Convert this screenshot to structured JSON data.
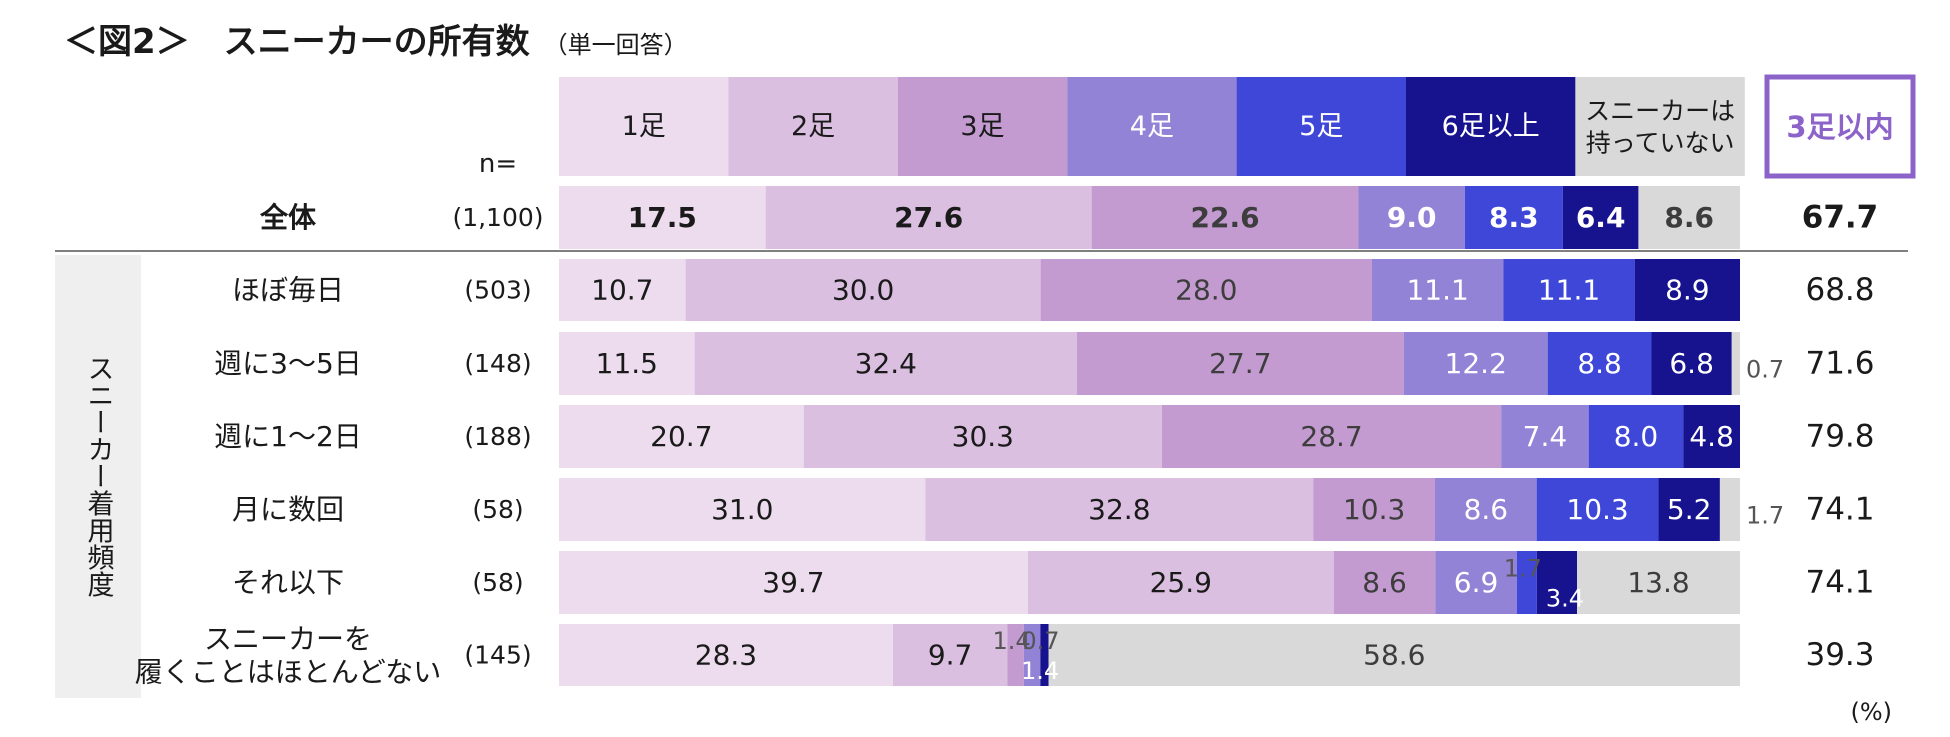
{
  "title": "＜図2＞　スニーカーの所有数",
  "subtitle": "（単一回答）",
  "chart_data": {
    "type": "bar",
    "orientation": "horizontal-stacked-100",
    "n_label": "n=",
    "group_label": "スニーカー着用頻度",
    "summary_header": "3足以内",
    "unit_label": "(%)",
    "legend": [
      {
        "name": "1足",
        "color": "#ecdcee"
      },
      {
        "name": "2足",
        "color": "#dbbfe0"
      },
      {
        "name": "3足",
        "color": "#c39bd1"
      },
      {
        "name": "4足",
        "color": "#9283d6"
      },
      {
        "name": "5足",
        "color": "#3f47d9"
      },
      {
        "name": "6足以上",
        "color": "#17138e"
      },
      {
        "name": "スニーカーは\n持っていない",
        "color": "#d9d9d9"
      }
    ],
    "rows": [
      {
        "label": "全体",
        "n": "(1,100)",
        "values": [
          17.5,
          27.6,
          22.6,
          9.0,
          8.3,
          6.4,
          8.6
        ],
        "summary": "67.7",
        "total": true
      },
      {
        "label": "ほぼ毎日",
        "n": "(503)",
        "values": [
          10.7,
          30.0,
          28.0,
          11.1,
          11.1,
          8.9,
          0
        ],
        "summary": "68.8"
      },
      {
        "label": "週に3～5日",
        "n": "(148)",
        "values": [
          11.5,
          32.4,
          27.7,
          12.2,
          8.8,
          6.8,
          0.7
        ],
        "summary": "71.6"
      },
      {
        "label": "週に1～2日",
        "n": "(188)",
        "values": [
          20.7,
          30.3,
          28.7,
          7.4,
          8.0,
          4.8,
          0
        ],
        "summary": "79.8"
      },
      {
        "label": "月に数回",
        "n": "(58)",
        "values": [
          31.0,
          32.8,
          10.3,
          8.6,
          10.3,
          5.2,
          1.7
        ],
        "summary": "74.1"
      },
      {
        "label": "それ以下",
        "n": "(58)",
        "values": [
          39.7,
          25.9,
          8.6,
          6.9,
          1.7,
          3.4,
          13.8
        ],
        "summary": "74.1"
      },
      {
        "label": "スニーカーを\n履くことはほとんどない",
        "n": "(145)",
        "values": [
          28.3,
          9.7,
          1.4,
          1.4,
          0,
          0.7,
          58.6
        ],
        "summary": "39.3"
      }
    ]
  }
}
